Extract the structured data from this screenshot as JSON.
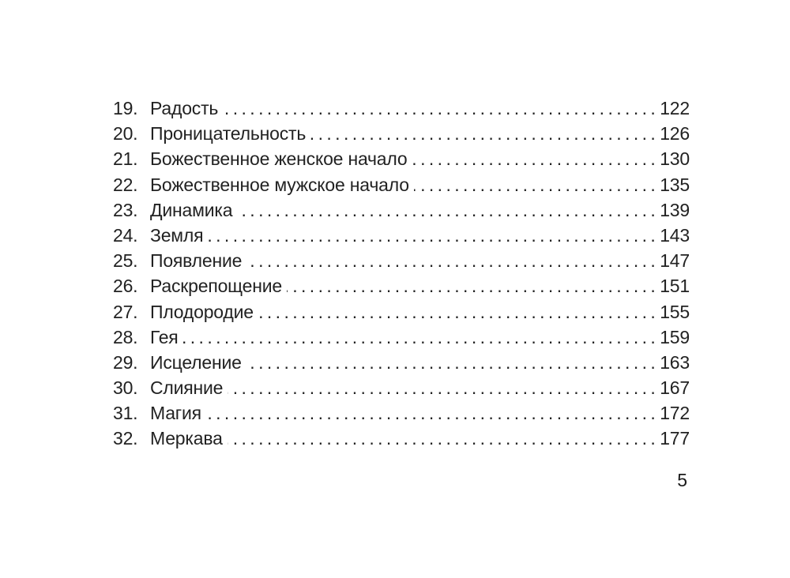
{
  "document": {
    "kind": "table-of-contents",
    "folio": "5"
  },
  "colors": {
    "text": "#222222",
    "background": "#ffffff"
  },
  "toc": {
    "entries": [
      {
        "num": "19.",
        "title": "Радость",
        "page": "122"
      },
      {
        "num": "20.",
        "title": "Проницательность",
        "page": "126"
      },
      {
        "num": "21.",
        "title": "Божественное женское начало",
        "page": "130"
      },
      {
        "num": "22.",
        "title": "Божественное мужское начало",
        "page": "135"
      },
      {
        "num": "23.",
        "title": "Динамика",
        "page": "139"
      },
      {
        "num": "24.",
        "title": "Земля",
        "page": "143"
      },
      {
        "num": "25.",
        "title": "Появление",
        "page": "147"
      },
      {
        "num": "26.",
        "title": "Раскрепощение",
        "page": "151"
      },
      {
        "num": "27.",
        "title": "Плодородие",
        "page": "155"
      },
      {
        "num": "28.",
        "title": "Гея",
        "page": "159"
      },
      {
        "num": "29.",
        "title": "Исцеление",
        "page": "163"
      },
      {
        "num": "30.",
        "title": "Слияние",
        "page": "167"
      },
      {
        "num": "31.",
        "title": "Магия",
        "page": "172"
      },
      {
        "num": "32.",
        "title": "Меркава",
        "page": "177"
      }
    ]
  }
}
